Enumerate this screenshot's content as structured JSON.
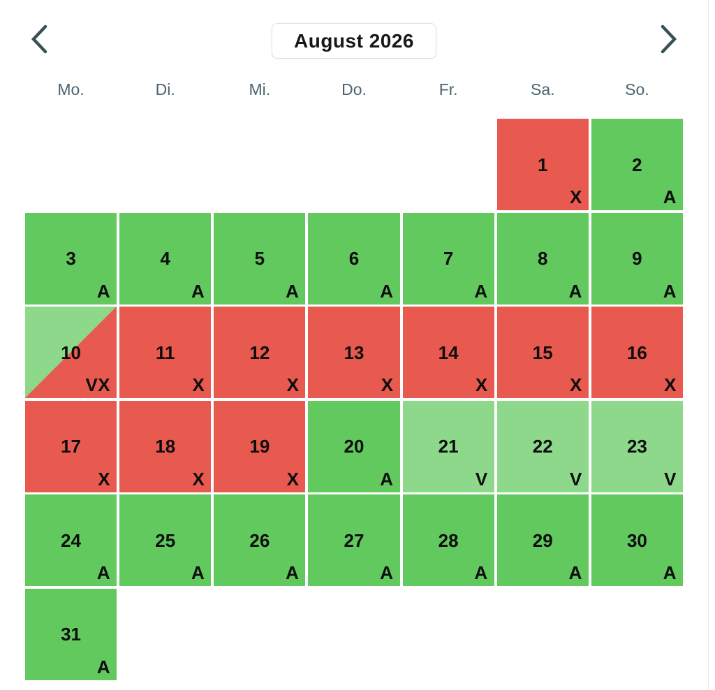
{
  "header": {
    "title": "August 2026",
    "prev_button": "previous-month",
    "next_button": "next-month"
  },
  "weekdays": [
    "Mo.",
    "Di.",
    "Mi.",
    "Do.",
    "Fr.",
    "Sa.",
    "So."
  ],
  "colors": {
    "available": "#61c95d",
    "unavailable": "#e85a4f",
    "partial": "#8ed88b",
    "chevron": "#3a5058",
    "weekday_text": "#4b636e",
    "cell_text": "#0d0d0d",
    "title_text": "#15181a",
    "title_border": "#dcdfe2",
    "background": "#ffffff"
  },
  "calendar": {
    "month_label": "August 2026",
    "days": [
      {
        "day": 1,
        "status": "X",
        "column": 6
      },
      {
        "day": 2,
        "status": "A",
        "column": 7
      },
      {
        "day": 3,
        "status": "A"
      },
      {
        "day": 4,
        "status": "A"
      },
      {
        "day": 5,
        "status": "A"
      },
      {
        "day": 6,
        "status": "A"
      },
      {
        "day": 7,
        "status": "A"
      },
      {
        "day": 8,
        "status": "A"
      },
      {
        "day": 9,
        "status": "A"
      },
      {
        "day": 10,
        "status": "VX"
      },
      {
        "day": 11,
        "status": "X"
      },
      {
        "day": 12,
        "status": "X"
      },
      {
        "day": 13,
        "status": "X"
      },
      {
        "day": 14,
        "status": "X"
      },
      {
        "day": 15,
        "status": "X"
      },
      {
        "day": 16,
        "status": "X"
      },
      {
        "day": 17,
        "status": "X"
      },
      {
        "day": 18,
        "status": "X"
      },
      {
        "day": 19,
        "status": "X"
      },
      {
        "day": 20,
        "status": "A"
      },
      {
        "day": 21,
        "status": "V"
      },
      {
        "day": 22,
        "status": "V"
      },
      {
        "day": 23,
        "status": "V"
      },
      {
        "day": 24,
        "status": "A"
      },
      {
        "day": 25,
        "status": "A"
      },
      {
        "day": 26,
        "status": "A"
      },
      {
        "day": 27,
        "status": "A"
      },
      {
        "day": 28,
        "status": "A"
      },
      {
        "day": 29,
        "status": "A"
      },
      {
        "day": 30,
        "status": "A"
      },
      {
        "day": 31,
        "status": "A"
      }
    ]
  }
}
